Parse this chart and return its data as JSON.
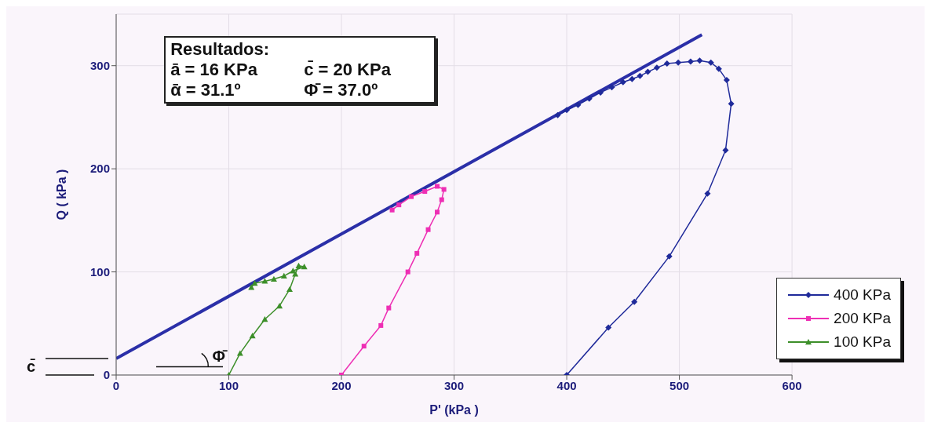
{
  "chart_data": {
    "type": "line",
    "xlabel": "P' (kPa )",
    "ylabel": "Q ( kPa )",
    "xlim": [
      0,
      600
    ],
    "xticks": [
      0,
      100,
      200,
      300,
      400,
      500,
      600
    ],
    "ylim": [
      0,
      350
    ],
    "yticks": [
      0,
      100,
      200,
      300
    ],
    "grid": true,
    "legend": "bottom right",
    "line_style": "solid",
    "annotations": [
      "Resultados:",
      "ā = 16 KPa",
      "c̄ = 20 KPa",
      "ᾱ = 31.1º",
      "Φ̄ = 37.0º",
      "Φ̄",
      "c̄"
    ],
    "series": [
      {
        "color": "#2b2fa8",
        "marker": "none",
        "x": [
          0,
          520
        ],
        "values": [
          16,
          330
        ]
      },
      {
        "name": "400 KPa",
        "color": "#1f2a9a",
        "marker": "diamond",
        "x": [
          400,
          437,
          460,
          491,
          525,
          541,
          546,
          542,
          535,
          528,
          518,
          510,
          499,
          489,
          480,
          472,
          465,
          458,
          450,
          440,
          430,
          420,
          410,
          400,
          392
        ],
        "values": [
          0,
          46,
          71,
          115,
          176,
          218,
          263,
          286,
          297,
          303,
          305,
          304,
          303,
          302,
          298,
          294,
          290,
          287,
          284,
          279,
          274,
          268,
          262,
          257,
          252
        ]
      },
      {
        "name": "200 KPa",
        "color": "#ee2fb4",
        "marker": "square",
        "x": [
          200,
          220,
          235,
          242,
          259,
          267,
          277,
          285,
          289,
          291,
          285,
          274,
          262,
          251,
          245
        ],
        "values": [
          0,
          28,
          48,
          65,
          100,
          118,
          141,
          158,
          170,
          180,
          183,
          178,
          173,
          165,
          160
        ]
      },
      {
        "name": "100 KPa",
        "color": "#3d8f2a",
        "marker": "triangle",
        "x": [
          100,
          110,
          121,
          132,
          145,
          154,
          159,
          162,
          167,
          157,
          149,
          140,
          132,
          123,
          120
        ],
        "values": [
          0,
          21,
          38,
          54,
          67,
          83,
          98,
          106,
          105,
          101,
          96,
          93,
          91,
          89,
          85
        ]
      }
    ]
  }
}
